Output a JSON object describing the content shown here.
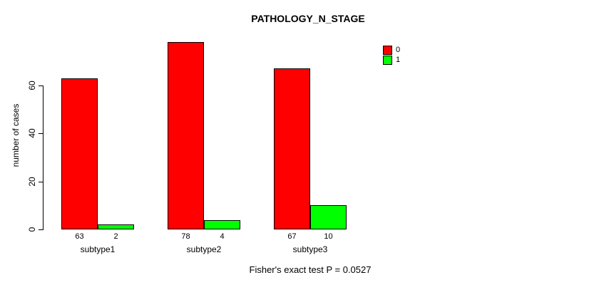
{
  "title": "PATHOLOGY_N_STAGE",
  "footer": "Fisher's exact test P = 0.0527",
  "chart_data": {
    "type": "bar",
    "title": "PATHOLOGY_N_STAGE",
    "xlabel": "",
    "ylabel": "number of cases",
    "categories": [
      "subtype1",
      "subtype2",
      "subtype3"
    ],
    "series": [
      {
        "name": "0",
        "color": "#ff0000",
        "values": [
          63,
          78,
          67
        ]
      },
      {
        "name": "1",
        "color": "#00ff00",
        "values": [
          2,
          4,
          10
        ]
      }
    ],
    "bar_value_labels": [
      [
        63,
        2
      ],
      [
        78,
        4
      ],
      [
        67,
        10
      ]
    ],
    "yticks": [
      0,
      20,
      40,
      60
    ],
    "ylim": [
      0,
      78
    ],
    "grid": false,
    "legend_position": "top-right-inside",
    "annotation": "Fisher's exact test P = 0.0527"
  }
}
